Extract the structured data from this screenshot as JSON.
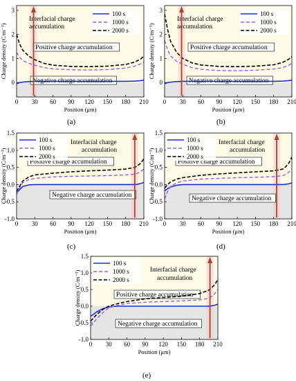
{
  "figure": {
    "panel_letters": [
      "(a)",
      "(b)",
      "(c)",
      "(d)",
      "(e)"
    ]
  },
  "colors": {
    "series_100": "#1f2bd6",
    "series_1000": "#9b5de5",
    "series_2000": "#000000",
    "arrow": "#9b4a2a",
    "positive_region": "#fffbe6",
    "negative_region": "#e5e5e5",
    "arrow_highlight": "#f6c9cf"
  },
  "chart_data": [
    {
      "panel": "(a)",
      "type": "line",
      "xlabel": "Position (μm)",
      "ylabel": "Charge density (C/m⁻³)",
      "xlim": [
        0,
        210
      ],
      "ylim": [
        -0.6,
        3.2
      ],
      "xticks": [
        0,
        30,
        60,
        90,
        120,
        150,
        180,
        210
      ],
      "yticks": [
        0,
        1,
        2,
        3
      ],
      "arrow_x": 28,
      "legend": "top-right",
      "annotations": [
        "Interfacial charge accumulation",
        "Positive charge accumulation",
        "Negative charge accumulation"
      ],
      "series": [
        {
          "name": "100 s",
          "x": [
            0,
            5,
            10,
            20,
            30,
            45,
            60,
            90,
            120,
            150,
            180,
            195,
            205,
            210
          ],
          "y": [
            -0.05,
            0.0,
            0.02,
            0.04,
            0.05,
            0.05,
            0.05,
            0.05,
            0.05,
            0.05,
            0.05,
            0.06,
            0.08,
            0.1
          ]
        },
        {
          "name": "1000 s",
          "x": [
            0,
            5,
            10,
            20,
            30,
            45,
            60,
            90,
            120,
            150,
            180,
            195,
            205,
            210
          ],
          "y": [
            1.25,
            1.05,
            0.92,
            0.8,
            0.72,
            0.62,
            0.57,
            0.53,
            0.52,
            0.54,
            0.6,
            0.68,
            0.78,
            0.85
          ]
        },
        {
          "name": "2000 s",
          "x": [
            0,
            5,
            10,
            20,
            30,
            45,
            60,
            90,
            120,
            150,
            180,
            195,
            205,
            210
          ],
          "y": [
            2.0,
            1.6,
            1.35,
            1.1,
            0.95,
            0.8,
            0.72,
            0.67,
            0.66,
            0.68,
            0.75,
            0.85,
            0.98,
            1.1
          ]
        }
      ]
    },
    {
      "panel": "(b)",
      "type": "line",
      "xlabel": "Position (μm)",
      "ylabel": "Charge density (C/m⁻³)",
      "xlim": [
        0,
        210
      ],
      "ylim": [
        -0.6,
        3.2
      ],
      "xticks": [
        0,
        30,
        60,
        90,
        120,
        150,
        180,
        210
      ],
      "yticks": [
        0,
        1,
        2,
        3
      ],
      "arrow_x": 28,
      "legend": "top-right",
      "annotations": [
        "Interfacial charge accumulation",
        "Positive charge accumulation",
        "Negative charge accumulation"
      ],
      "series": [
        {
          "name": "100 s",
          "x": [
            0,
            5,
            10,
            20,
            30,
            45,
            60,
            90,
            120,
            150,
            180,
            195,
            205,
            210
          ],
          "y": [
            -0.05,
            0.0,
            0.02,
            0.04,
            0.05,
            0.05,
            0.05,
            0.05,
            0.05,
            0.05,
            0.05,
            0.06,
            0.08,
            0.1
          ]
        },
        {
          "name": "1000 s",
          "x": [
            0,
            5,
            10,
            20,
            30,
            45,
            60,
            90,
            120,
            150,
            180,
            195,
            205,
            210
          ],
          "y": [
            1.75,
            1.35,
            1.1,
            0.88,
            0.76,
            0.62,
            0.55,
            0.5,
            0.49,
            0.51,
            0.56,
            0.62,
            0.72,
            0.8
          ]
        },
        {
          "name": "2000 s",
          "x": [
            0,
            5,
            10,
            20,
            30,
            45,
            60,
            90,
            120,
            150,
            180,
            195,
            205,
            210
          ],
          "y": [
            2.85,
            2.2,
            1.7,
            1.25,
            1.0,
            0.82,
            0.73,
            0.67,
            0.66,
            0.68,
            0.74,
            0.84,
            0.97,
            1.08
          ]
        }
      ]
    },
    {
      "panel": "(c)",
      "type": "line",
      "xlabel": "Position (μm)",
      "ylabel": "Charge density (C/m⁻³)",
      "xlim": [
        0,
        210
      ],
      "ylim": [
        -1.0,
        1.5
      ],
      "xticks": [
        0,
        30,
        60,
        90,
        120,
        150,
        180,
        210
      ],
      "yticks": [
        -1.0,
        -0.5,
        0.0,
        0.5,
        1.0,
        1.5
      ],
      "arrow_x": 195,
      "legend": "top-left",
      "annotations": [
        "Interfacial charge accumulation",
        "Positive charge accumulation",
        "Negative charge accumulation"
      ],
      "series": [
        {
          "name": "100 s",
          "x": [
            0,
            5,
            10,
            20,
            30,
            60,
            90,
            120,
            150,
            180,
            195,
            200,
            205,
            210
          ],
          "y": [
            -0.25,
            -0.15,
            -0.06,
            -0.01,
            0.0,
            0.0,
            0.0,
            0.0,
            0.0,
            0.0,
            0.0,
            0.01,
            0.03,
            0.06
          ]
        },
        {
          "name": "1000 s",
          "x": [
            0,
            5,
            10,
            20,
            30,
            60,
            90,
            120,
            150,
            180,
            195,
            200,
            205,
            210
          ],
          "y": [
            -0.28,
            -0.1,
            0.05,
            0.14,
            0.18,
            0.22,
            0.24,
            0.25,
            0.26,
            0.28,
            0.3,
            0.33,
            0.38,
            0.45
          ]
        },
        {
          "name": "2000 s",
          "x": [
            0,
            5,
            10,
            20,
            30,
            60,
            90,
            120,
            150,
            180,
            195,
            200,
            205,
            210
          ],
          "y": [
            -0.2,
            -0.05,
            0.1,
            0.22,
            0.28,
            0.33,
            0.37,
            0.4,
            0.42,
            0.45,
            0.5,
            0.55,
            0.62,
            0.75
          ]
        }
      ]
    },
    {
      "panel": "(d)",
      "type": "line",
      "xlabel": "Position (μm)",
      "ylabel": "Charge density (C/m⁻³)",
      "xlim": [
        0,
        210
      ],
      "ylim": [
        -1.0,
        1.5
      ],
      "xticks": [
        0,
        30,
        60,
        90,
        120,
        150,
        180,
        210
      ],
      "yticks": [
        -1.0,
        -0.5,
        0.0,
        0.5,
        1.0,
        1.5
      ],
      "arrow_x": 185,
      "legend": "top-left",
      "annotations": [
        "Interfacial charge accumulation",
        "Positive charge accumulation",
        "Negative charge accumulation"
      ],
      "series": [
        {
          "name": "100 s",
          "x": [
            0,
            5,
            10,
            20,
            30,
            60,
            90,
            120,
            150,
            180,
            195,
            200,
            205,
            210
          ],
          "y": [
            -0.18,
            -0.12,
            -0.07,
            -0.02,
            0.0,
            0.0,
            0.0,
            0.0,
            0.0,
            0.0,
            0.0,
            0.01,
            0.02,
            0.05
          ]
        },
        {
          "name": "1000 s",
          "x": [
            0,
            5,
            10,
            20,
            30,
            60,
            90,
            120,
            150,
            180,
            195,
            200,
            205,
            210
          ],
          "y": [
            -0.42,
            -0.2,
            -0.05,
            0.05,
            0.1,
            0.16,
            0.18,
            0.2,
            0.21,
            0.23,
            0.26,
            0.3,
            0.36,
            0.45
          ]
        },
        {
          "name": "2000 s",
          "x": [
            0,
            5,
            10,
            20,
            30,
            60,
            90,
            120,
            150,
            180,
            195,
            200,
            205,
            210
          ],
          "y": [
            -0.1,
            0.0,
            0.08,
            0.16,
            0.2,
            0.27,
            0.31,
            0.34,
            0.37,
            0.4,
            0.45,
            0.52,
            0.62,
            0.8
          ]
        }
      ]
    },
    {
      "panel": "(e)",
      "type": "line",
      "xlabel": "Position (μm)",
      "ylabel": "Charge density (C/m⁻³)",
      "xlim": [
        0,
        210
      ],
      "ylim": [
        -1.0,
        1.5
      ],
      "xticks": [
        0,
        30,
        60,
        90,
        120,
        150,
        180,
        210
      ],
      "yticks": [
        -1.0,
        -0.5,
        0.0,
        0.5,
        1.0,
        1.5
      ],
      "arrow_x": 197,
      "legend": "top-left",
      "annotations": [
        "Interfacial charge accumulation",
        "Positive charge accumulation",
        "Negative charge accumulation"
      ],
      "series": [
        {
          "name": "100 s",
          "x": [
            0,
            5,
            10,
            20,
            30,
            45,
            60,
            90,
            120,
            150,
            180,
            195,
            200,
            205,
            210
          ],
          "y": [
            -0.3,
            -0.24,
            -0.17,
            -0.08,
            -0.02,
            0.0,
            0.0,
            0.0,
            0.0,
            0.0,
            0.0,
            0.0,
            0.01,
            0.03,
            0.06
          ]
        },
        {
          "name": "1000 s",
          "x": [
            0,
            5,
            10,
            20,
            30,
            45,
            60,
            90,
            120,
            150,
            180,
            195,
            200,
            205,
            210
          ],
          "y": [
            -0.6,
            -0.5,
            -0.38,
            -0.2,
            -0.05,
            0.03,
            0.08,
            0.12,
            0.14,
            0.16,
            0.19,
            0.24,
            0.3,
            0.38,
            0.5
          ]
        },
        {
          "name": "2000 s",
          "x": [
            0,
            5,
            10,
            20,
            30,
            45,
            60,
            90,
            120,
            150,
            180,
            195,
            200,
            205,
            210
          ],
          "y": [
            -0.45,
            -0.35,
            -0.25,
            -0.1,
            0.0,
            0.08,
            0.14,
            0.22,
            0.26,
            0.3,
            0.38,
            0.48,
            0.56,
            0.65,
            0.8
          ]
        }
      ]
    }
  ]
}
